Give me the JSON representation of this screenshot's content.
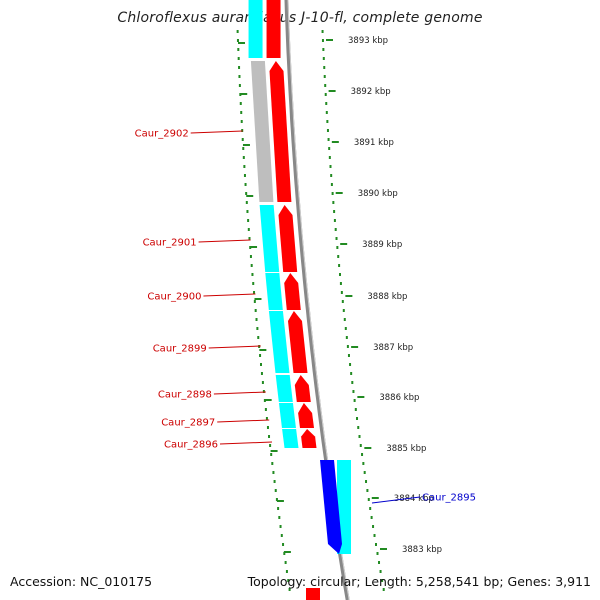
{
  "title": "Chloroflexus aurantiacus J-10-fl, complete genome",
  "accession_text": "Accession: NC_010175",
  "summary_text": "Topology: circular; Length: 5,258,541 bp; Genes: 3,911",
  "colors": {
    "cds_forward": "#ff0000",
    "cds_reverse": "#0000ff",
    "cog_cyan": "#00ffff",
    "cog_grey": "#bebebe",
    "backbone": "#888888",
    "ruler_ticks": "#228b22",
    "label_forward": "#cc0000",
    "label_reverse": "#0000cc"
  },
  "ruler": {
    "ticks": [
      "3893 kbp",
      "3892 kbp",
      "3891 kbp",
      "3890 kbp",
      "3889 kbp",
      "3888 kbp",
      "3887 kbp",
      "3886 kbp",
      "3885 kbp",
      "3884 kbp",
      "3883 kbp"
    ]
  },
  "genes": [
    {
      "name": "Caur_2902",
      "strand": "forward",
      "cog": "grey"
    },
    {
      "name": "Caur_2901",
      "strand": "forward",
      "cog": "cyan"
    },
    {
      "name": "Caur_2900",
      "strand": "forward",
      "cog": "cyan"
    },
    {
      "name": "Caur_2899",
      "strand": "forward",
      "cog": "cyan"
    },
    {
      "name": "Caur_2898",
      "strand": "forward",
      "cog": "cyan"
    },
    {
      "name": "Caur_2897",
      "strand": "forward",
      "cog": "cyan"
    },
    {
      "name": "Caur_2896",
      "strand": "forward",
      "cog": "cyan"
    },
    {
      "name": "Caur_2895",
      "strand": "reverse",
      "cog": "cyan"
    }
  ]
}
